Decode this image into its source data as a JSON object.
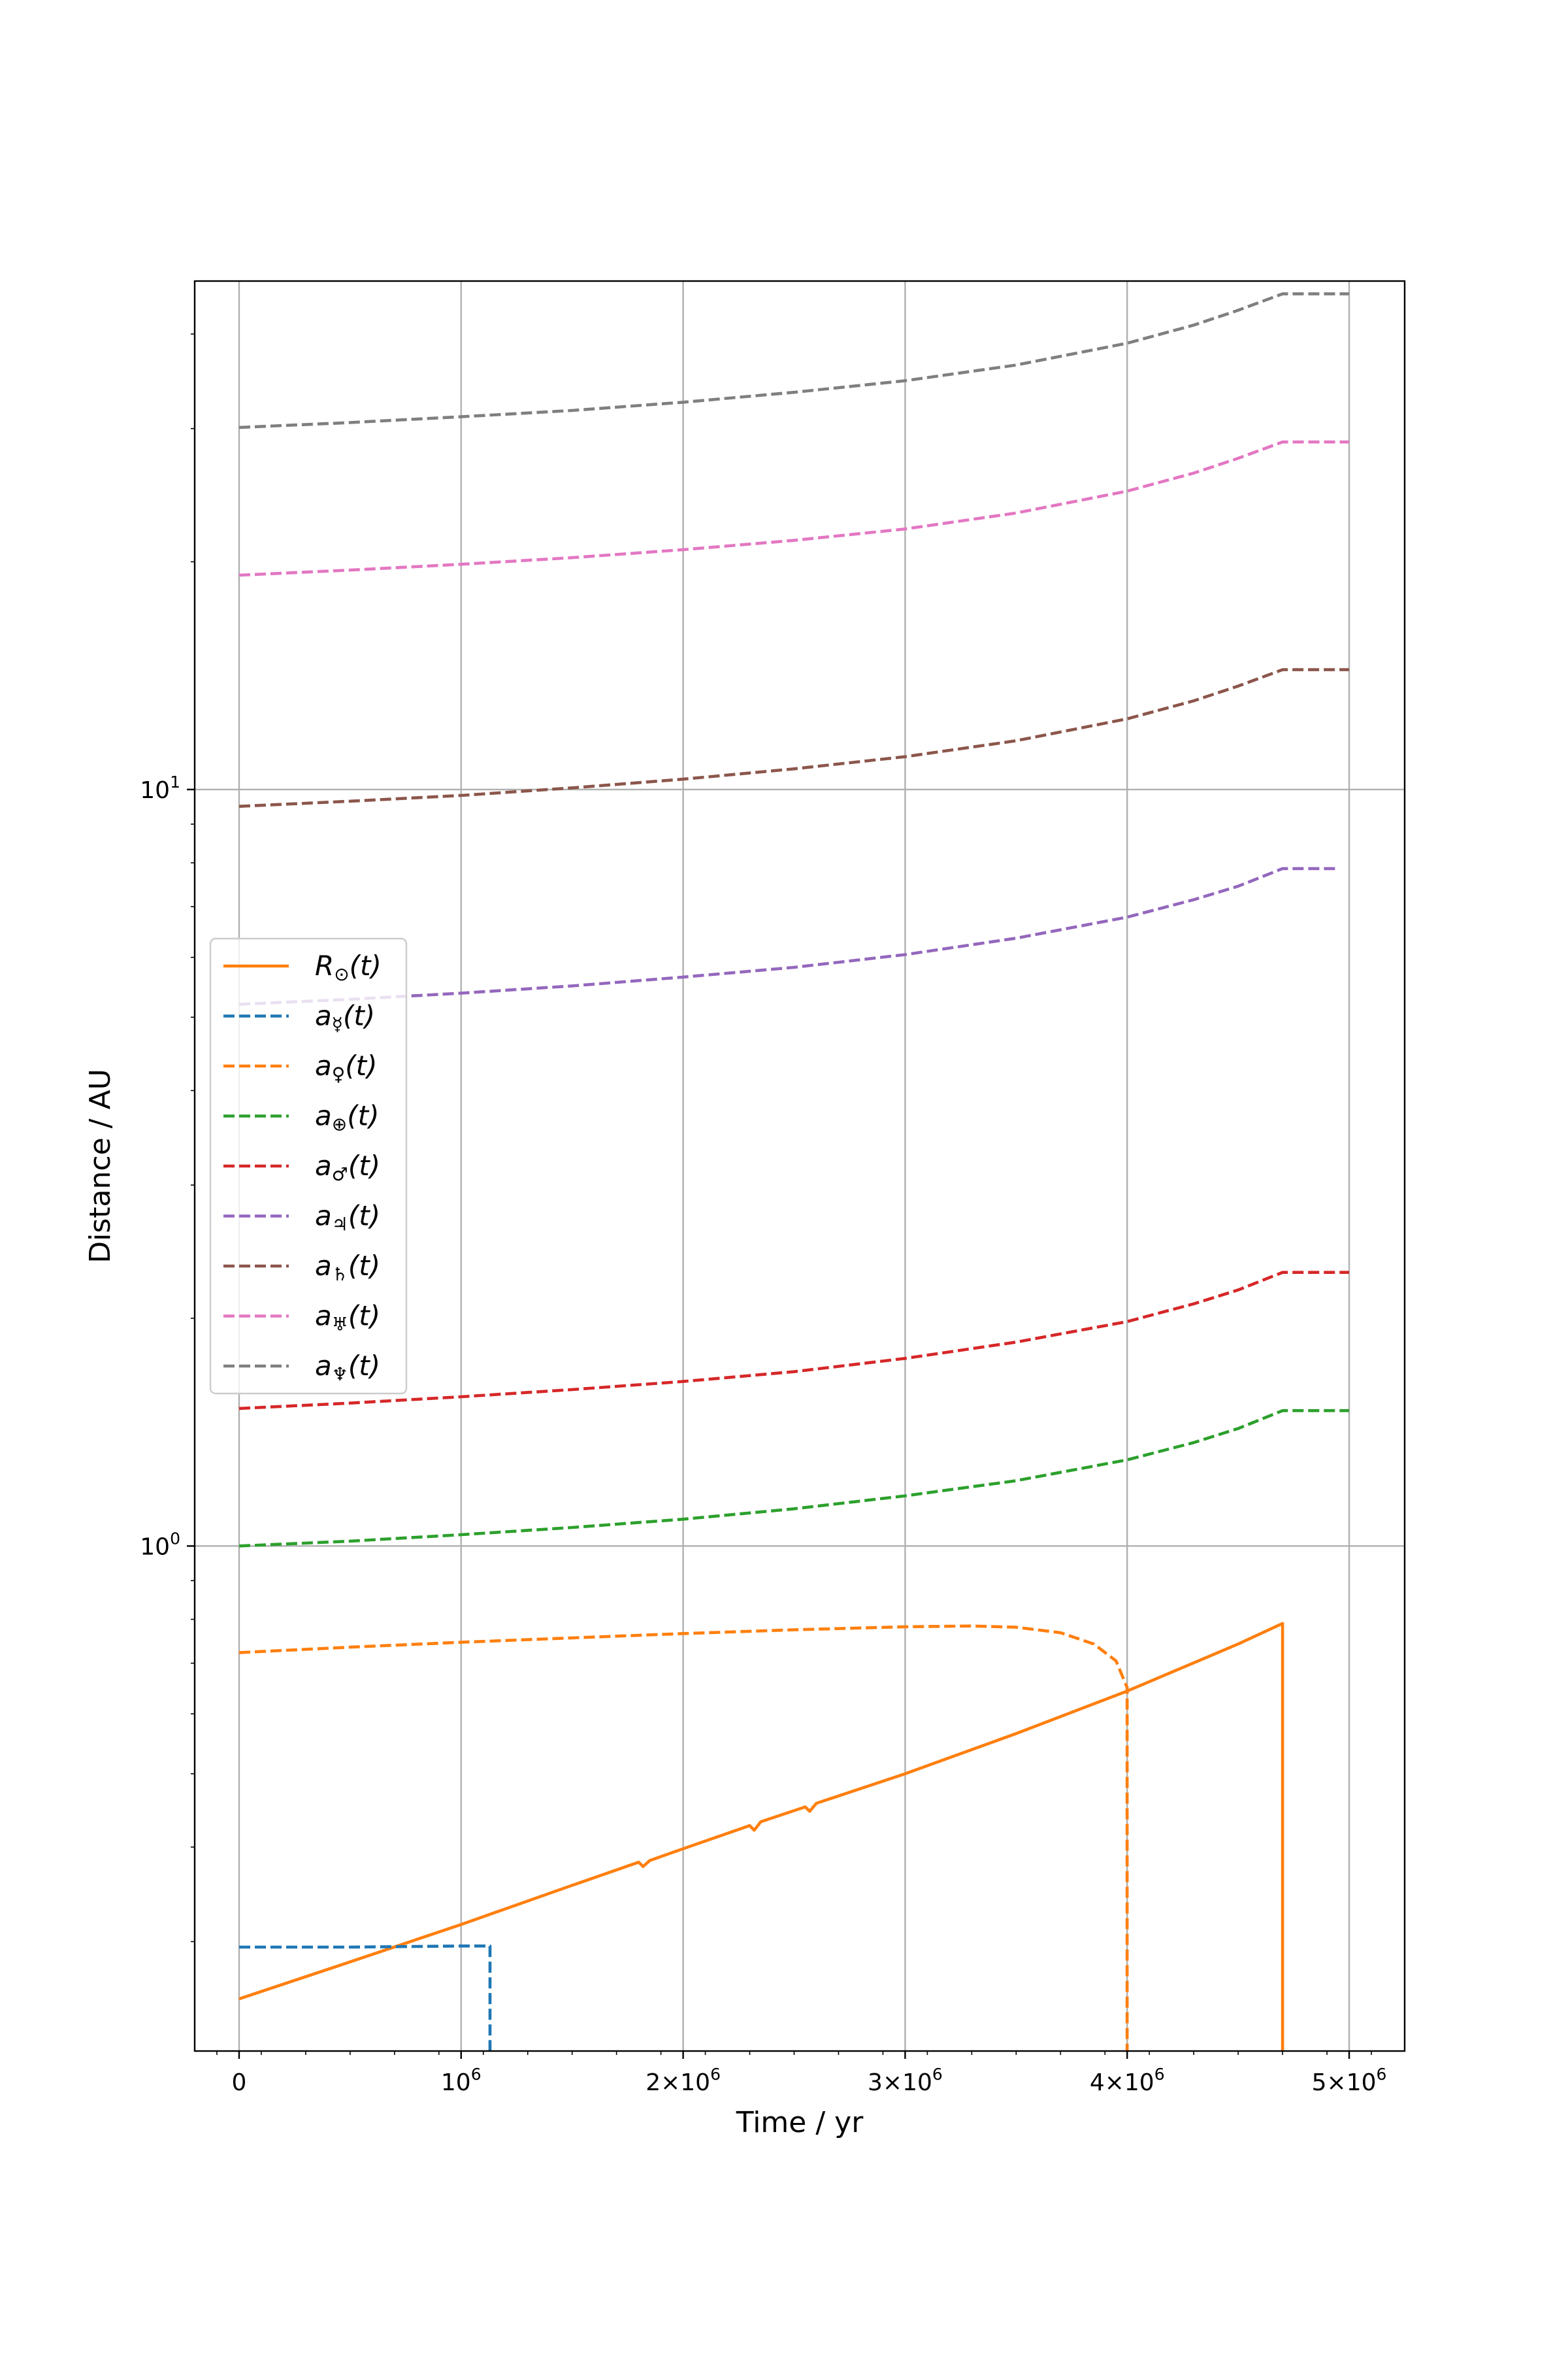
{
  "chart_data": {
    "type": "line",
    "title": "",
    "xlabel": "Time / yr",
    "ylabel": "Distance / AU",
    "x_scale": "linear",
    "y_scale": "log",
    "xlim": [
      -200000,
      5250000
    ],
    "ylim": [
      0.215,
      47.0
    ],
    "grid": true,
    "legend_position": "center-left",
    "x_ticks": [
      {
        "value": 0,
        "label": "0"
      },
      {
        "value": 1000000,
        "label": "10^6"
      },
      {
        "value": 2000000,
        "label": "2×10^6"
      },
      {
        "value": 3000000,
        "label": "3×10^6"
      },
      {
        "value": 4000000,
        "label": "4×10^6"
      },
      {
        "value": 5000000,
        "label": "5×10^6"
      }
    ],
    "y_ticks": [
      {
        "value": 1,
        "label": "10^0"
      },
      {
        "value": 10,
        "label": "10^1"
      }
    ],
    "series": [
      {
        "name": "R☉(t)",
        "symbol": "R",
        "subscript": "⊙",
        "color": "#ff7f0e",
        "dash": "solid",
        "points": [
          [
            0,
            0.252
          ],
          [
            500000,
            0.282
          ],
          [
            1000000,
            0.316
          ],
          [
            1500000,
            0.356
          ],
          [
            1800000,
            0.382
          ],
          [
            1820000,
            0.377
          ],
          [
            1850000,
            0.384
          ],
          [
            2000000,
            0.398
          ],
          [
            2300000,
            0.427
          ],
          [
            2320000,
            0.421
          ],
          [
            2350000,
            0.432
          ],
          [
            2550000,
            0.452
          ],
          [
            2570000,
            0.446
          ],
          [
            2600000,
            0.457
          ],
          [
            2800000,
            0.478
          ],
          [
            3000000,
            0.5
          ],
          [
            3500000,
            0.565
          ],
          [
            4000000,
            0.643
          ],
          [
            4500000,
            0.742
          ],
          [
            4700000,
            0.79
          ],
          [
            4700001,
            0.215
          ]
        ]
      },
      {
        "name": "a☿(t)",
        "symbol": "a",
        "subscript": "☿",
        "color": "#1f77b4",
        "dash": "dashed",
        "points": [
          [
            0,
            0.295
          ],
          [
            500000,
            0.295
          ],
          [
            1000000,
            0.296
          ],
          [
            1130000,
            0.296
          ],
          [
            1130001,
            0.215
          ]
        ]
      },
      {
        "name": "a♀(t)",
        "symbol": "a",
        "subscript": "♀",
        "color": "#ff7f0e",
        "dash": "dashed",
        "points": [
          [
            0,
            0.723
          ],
          [
            500000,
            0.735
          ],
          [
            1000000,
            0.746
          ],
          [
            1500000,
            0.756
          ],
          [
            2000000,
            0.766
          ],
          [
            2500000,
            0.775
          ],
          [
            3000000,
            0.782
          ],
          [
            3300000,
            0.784
          ],
          [
            3500000,
            0.781
          ],
          [
            3700000,
            0.768
          ],
          [
            3850000,
            0.742
          ],
          [
            3950000,
            0.705
          ],
          [
            4000000,
            0.65
          ],
          [
            4000001,
            0.215
          ]
        ]
      },
      {
        "name": "a⊕(t)",
        "symbol": "a",
        "subscript": "⊕",
        "color": "#2ca02c",
        "dash": "dashed",
        "points": [
          [
            0,
            1.0
          ],
          [
            500000,
            1.015
          ],
          [
            1000000,
            1.035
          ],
          [
            1500000,
            1.058
          ],
          [
            2000000,
            1.085
          ],
          [
            2500000,
            1.12
          ],
          [
            3000000,
            1.165
          ],
          [
            3500000,
            1.22
          ],
          [
            4000000,
            1.3
          ],
          [
            4300000,
            1.37
          ],
          [
            4500000,
            1.43
          ],
          [
            4700000,
            1.51
          ],
          [
            5000000,
            1.51
          ]
        ]
      },
      {
        "name": "a♂(t)",
        "symbol": "a",
        "subscript": "♂",
        "color": "#d62728",
        "dash": "dashed",
        "points": [
          [
            0,
            1.52
          ],
          [
            500000,
            1.545
          ],
          [
            1000000,
            1.575
          ],
          [
            1500000,
            1.61
          ],
          [
            2000000,
            1.65
          ],
          [
            2500000,
            1.7
          ],
          [
            3000000,
            1.77
          ],
          [
            3500000,
            1.86
          ],
          [
            4000000,
            1.98
          ],
          [
            4300000,
            2.09
          ],
          [
            4500000,
            2.18
          ],
          [
            4700000,
            2.3
          ],
          [
            5000000,
            2.3
          ]
        ]
      },
      {
        "name": "a♃(t)",
        "symbol": "a",
        "subscript": "♃",
        "color": "#9467bd",
        "dash": "dashed",
        "points": [
          [
            0,
            5.2
          ],
          [
            500000,
            5.28
          ],
          [
            1000000,
            5.38
          ],
          [
            1500000,
            5.5
          ],
          [
            2000000,
            5.65
          ],
          [
            2500000,
            5.82
          ],
          [
            3000000,
            6.05
          ],
          [
            3500000,
            6.36
          ],
          [
            4000000,
            6.78
          ],
          [
            4300000,
            7.15
          ],
          [
            4500000,
            7.45
          ],
          [
            4700000,
            7.86
          ],
          [
            4950000,
            7.86
          ]
        ]
      },
      {
        "name": "a♄(t)",
        "symbol": "a",
        "subscript": "♄",
        "color": "#8c564b",
        "dash": "dashed",
        "points": [
          [
            0,
            9.5
          ],
          [
            500000,
            9.65
          ],
          [
            1000000,
            9.82
          ],
          [
            1500000,
            10.05
          ],
          [
            2000000,
            10.32
          ],
          [
            2500000,
            10.65
          ],
          [
            3000000,
            11.05
          ],
          [
            3500000,
            11.6
          ],
          [
            4000000,
            12.4
          ],
          [
            4300000,
            13.1
          ],
          [
            4500000,
            13.7
          ],
          [
            4700000,
            14.4
          ],
          [
            5000000,
            14.4
          ]
        ]
      },
      {
        "name": "a♅(t)",
        "symbol": "a",
        "subscript": "♅",
        "color": "#e377c2",
        "dash": "dashed",
        "points": [
          [
            0,
            19.2
          ],
          [
            500000,
            19.5
          ],
          [
            1000000,
            19.85
          ],
          [
            1500000,
            20.25
          ],
          [
            2000000,
            20.75
          ],
          [
            2500000,
            21.35
          ],
          [
            3000000,
            22.1
          ],
          [
            3500000,
            23.2
          ],
          [
            4000000,
            24.8
          ],
          [
            4300000,
            26.2
          ],
          [
            4500000,
            27.4
          ],
          [
            4700000,
            28.8
          ],
          [
            5000000,
            28.8
          ]
        ]
      },
      {
        "name": "a♆(t)",
        "symbol": "a",
        "subscript": "♆",
        "color": "#7f7f7f",
        "dash": "dashed",
        "points": [
          [
            0,
            30.1
          ],
          [
            500000,
            30.55
          ],
          [
            1000000,
            31.1
          ],
          [
            1500000,
            31.7
          ],
          [
            2000000,
            32.5
          ],
          [
            2500000,
            33.5
          ],
          [
            3000000,
            34.7
          ],
          [
            3500000,
            36.4
          ],
          [
            4000000,
            38.9
          ],
          [
            4300000,
            41.1
          ],
          [
            4500000,
            43.0
          ],
          [
            4700000,
            45.2
          ],
          [
            5000000,
            45.2
          ]
        ]
      }
    ]
  }
}
